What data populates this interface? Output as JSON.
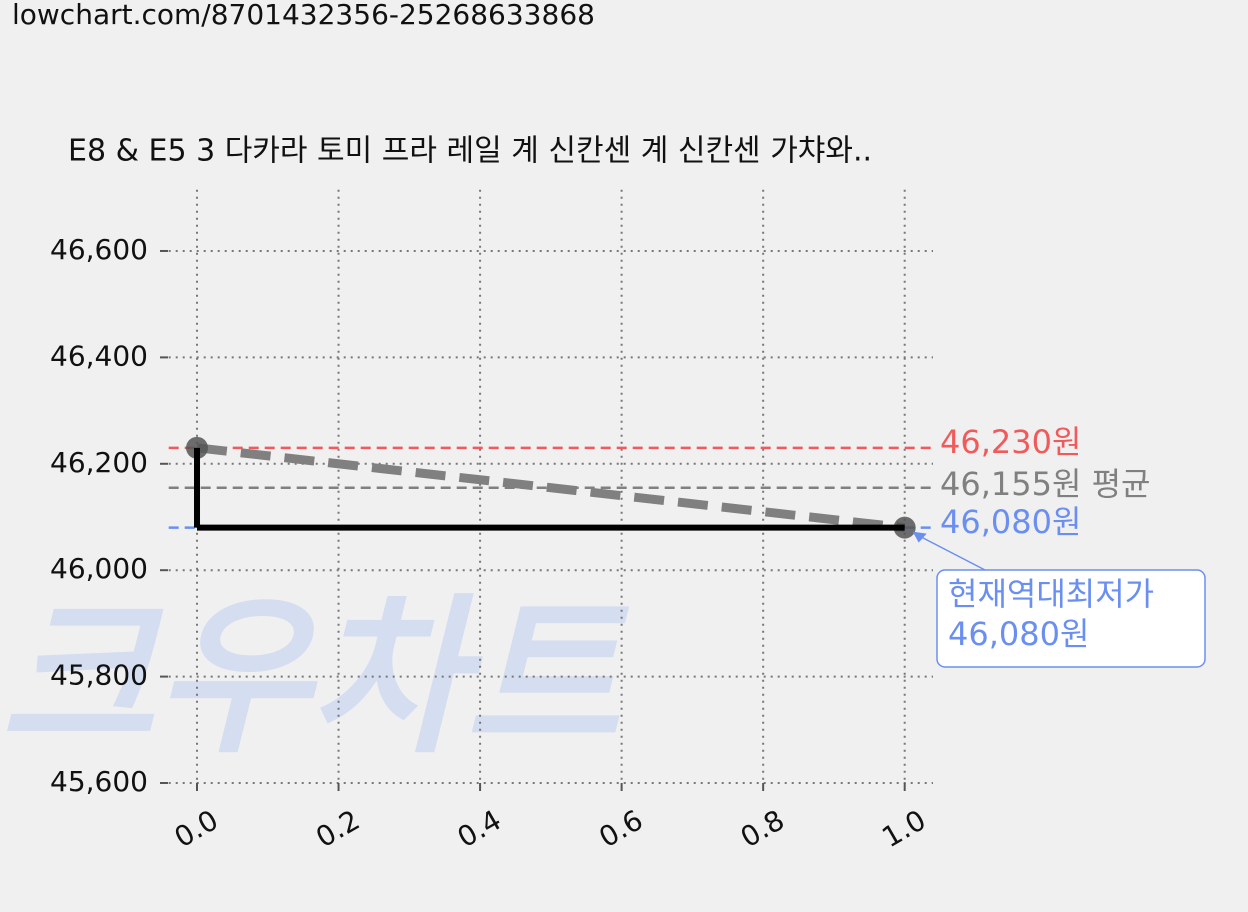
{
  "url": "lowchart.com/8701432356-25268633868",
  "chart_data": {
    "type": "line",
    "title": "E8 & E5 3 다카라 토미 프라 레일 계 신칸센 계 신칸센 가챠와..",
    "watermark": "크우차트",
    "xlim": [
      -0.04,
      1.04
    ],
    "xticks": [
      {
        "value": 0,
        "label": "0.0"
      },
      {
        "value": 0.2,
        "label": "0.2"
      },
      {
        "value": 0.4,
        "label": "0.4"
      },
      {
        "value": 0.6,
        "label": "0.6"
      },
      {
        "value": 0.8,
        "label": "0.8"
      },
      {
        "value": 1,
        "label": "1.0"
      }
    ],
    "ylim": [
      45600,
      46715
    ],
    "yticks": [
      {
        "value": 45600,
        "label": "45,600"
      },
      {
        "value": 45800,
        "label": "45,800"
      },
      {
        "value": 46000,
        "label": "46,000"
      },
      {
        "value": 46200,
        "label": "46,200"
      },
      {
        "value": 46400,
        "label": "46,400"
      },
      {
        "value": 46600,
        "label": "46,600"
      }
    ],
    "grid": true,
    "series": [
      {
        "color": "#808080",
        "style": "dashed",
        "markers": true,
        "x": [
          0,
          1
        ],
        "values": [
          46230,
          46080
        ]
      },
      {
        "color": "#000000",
        "style": "step",
        "x": [
          0,
          1
        ],
        "values": [
          46230,
          46080
        ]
      }
    ],
    "reference_lines": [
      {
        "value": 46230,
        "label": "46,230원",
        "color": "#f05a5a"
      },
      {
        "value": 46155,
        "label": "46,155원 평균",
        "color": "#808080"
      },
      {
        "value": 46080,
        "label": "46,080원",
        "color": "#6a8ff0"
      }
    ],
    "annotation": {
      "text": "현재역대최저가",
      "x": 1,
      "value": 46080,
      "label": "46,080원",
      "color": "#6a8ff0"
    }
  }
}
